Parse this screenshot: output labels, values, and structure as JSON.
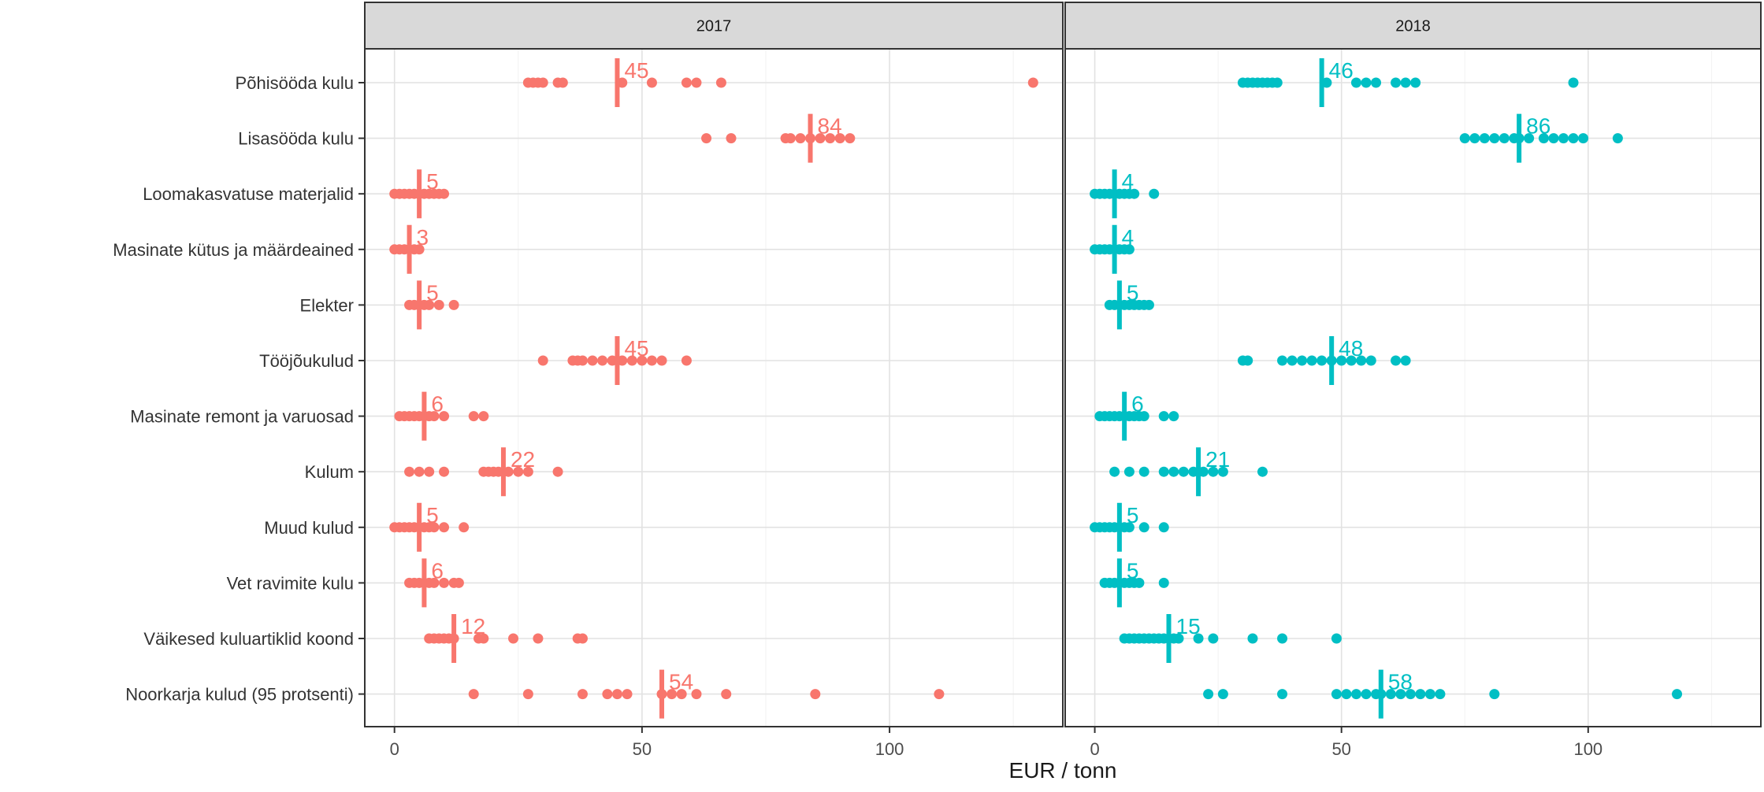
{
  "chart_data": {
    "type": "scatter",
    "xlabel": "EUR / tonn",
    "ylabel": "",
    "xlim": [
      -6,
      135
    ],
    "xticks": [
      0,
      50,
      100
    ],
    "grid": true,
    "legend": "none",
    "categories": [
      "Põhisööda kulu",
      "Lisasööda kulu",
      "Loomakasvatuse materjalid",
      "Masinate kütus ja määrdeained",
      "Elekter",
      "Tööjõukulud",
      "Masinate remont ja varuosad",
      "Kulum",
      "Muud kulud",
      "Vet ravimite kulu",
      "Väikesed kuluartiklid koond",
      "Noorkarja kulud (95 protsenti)"
    ],
    "panels": [
      {
        "label": "2017",
        "color": "#F8766D",
        "medians": [
          45,
          84,
          5,
          3,
          5,
          45,
          6,
          22,
          5,
          6,
          12,
          54
        ],
        "points": [
          [
            27,
            28,
            29,
            30,
            33,
            34,
            46,
            52,
            59,
            61,
            66,
            129
          ],
          [
            63,
            68,
            79,
            80,
            82,
            84,
            86,
            88,
            90,
            92
          ],
          [
            0,
            1,
            2,
            3,
            4,
            5,
            6,
            7,
            8,
            9,
            10
          ],
          [
            0,
            1,
            2,
            3,
            4,
            5
          ],
          [
            3,
            4,
            5,
            6,
            7,
            9,
            12
          ],
          [
            30,
            36,
            37,
            38,
            40,
            42,
            44,
            46,
            48,
            50,
            52,
            54,
            59
          ],
          [
            1,
            2,
            3,
            4,
            5,
            6,
            7,
            8,
            10,
            16,
            18
          ],
          [
            3,
            5,
            7,
            10,
            18,
            19,
            20,
            21,
            22,
            23,
            25,
            27,
            33
          ],
          [
            0,
            1,
            2,
            3,
            4,
            5,
            6,
            7,
            8,
            10,
            14
          ],
          [
            3,
            4,
            5,
            6,
            7,
            8,
            10,
            12,
            13
          ],
          [
            7,
            8,
            9,
            10,
            11,
            12,
            17,
            18,
            24,
            29,
            37,
            38
          ],
          [
            16,
            27,
            38,
            43,
            45,
            47,
            54,
            56,
            58,
            61,
            67,
            85,
            110
          ]
        ]
      },
      {
        "label": "2018",
        "color": "#00BFC4",
        "medians": [
          46,
          86,
          4,
          4,
          5,
          48,
          6,
          21,
          5,
          5,
          15,
          58
        ],
        "points": [
          [
            30,
            31,
            32,
            33,
            34,
            35,
            36,
            37,
            47,
            53,
            55,
            57,
            61,
            63,
            65,
            97
          ],
          [
            75,
            77,
            79,
            81,
            83,
            85,
            86,
            88,
            91,
            93,
            95,
            97,
            99,
            106
          ],
          [
            0,
            1,
            2,
            3,
            4,
            5,
            6,
            7,
            8,
            12
          ],
          [
            0,
            1,
            2,
            3,
            4,
            5,
            6,
            7
          ],
          [
            3,
            4,
            5,
            6,
            7,
            8,
            9,
            10,
            11
          ],
          [
            30,
            31,
            38,
            40,
            42,
            44,
            46,
            48,
            50,
            52,
            54,
            56,
            61,
            63
          ],
          [
            1,
            2,
            3,
            4,
            5,
            6,
            7,
            8,
            9,
            10,
            14,
            16
          ],
          [
            4,
            7,
            10,
            14,
            16,
            18,
            20,
            22,
            24,
            26,
            34
          ],
          [
            0,
            1,
            2,
            3,
            4,
            5,
            6,
            7,
            10,
            14
          ],
          [
            2,
            3,
            4,
            5,
            6,
            7,
            8,
            9,
            14
          ],
          [
            6,
            7,
            8,
            9,
            10,
            11,
            12,
            13,
            14,
            15,
            16,
            17,
            21,
            24,
            32,
            38,
            49
          ],
          [
            23,
            26,
            38,
            49,
            51,
            53,
            55,
            57,
            58,
            60,
            62,
            64,
            66,
            68,
            70,
            81,
            118
          ]
        ]
      }
    ]
  }
}
